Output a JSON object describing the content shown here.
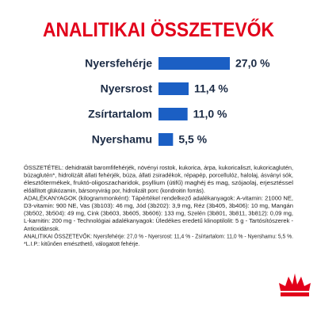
{
  "chart_data": {
    "type": "bar",
    "orientation": "horizontal",
    "title": "ANALITIKAI ÖSSZETEVŐK",
    "categories": [
      "Nyersfehérje",
      "Nyersrost",
      "Zsírtartalom",
      "Nyershamu"
    ],
    "values": [
      27.0,
      11.4,
      11.0,
      5.5
    ],
    "value_labels": [
      "27,0 %",
      "11,4 %",
      "11,0 %",
      "5,5 %"
    ],
    "color": "#1b5fc4",
    "title_color": "#e2001a"
  },
  "composition": {
    "lines": [
      "ÖSSZETÉTEL: dehidratált baromfifehérjék, növényi rostok, kukorica, árpa, kukoricaliszt, kukoricaglutén,",
      "búzaglutén*, hidrolizált állati fehérjék, búza, állati zsiradékok, répapép, porcellulóz, halolaj, ásványi sók,",
      "élesztőtermékek, fruktó-oligoszacharidok, psyllium (útifű) maghéj és mag, szójaolaj, erjesztéssel",
      "előállított glükózamin, bársonyvirág por, hidrolizált porc (kondroitin forrás).",
      "ADALÉKANYAGOK (kilogrammonként): Tápértékel rendelkező adalékanyagok: A-vitamin: 21000 NE,",
      "D3-vitamin: 900 NE, Vas (3b103): 46 mg, Jód (3b202): 3,9 mg, Réz (3b405, 3b406): 10 mg, Mangán",
      "(3b502, 3b504): 49 mg, Cink (3b603, 3b605, 3b606): 133 mg, Szelén (3b801, 3b811, 3b812): 0,09 mg,",
      "L-karnitin: 200 mg - Technológiai adalékanyagok: Üledékes eredetű klinoptilolit: 5 g - Tartósítószerek -",
      "Antioxidánsok.",
      "ANALITIKAI ÖSSZETEVŐK: Nyersfehérje: 27,0 % - Nyersrost: 11,4 % - Zsírtartalom: 11,0 % - Nyershamu: 5,5 %.",
      "*L.I.P.: kitűnően emészthető, válogatott fehérje."
    ]
  }
}
